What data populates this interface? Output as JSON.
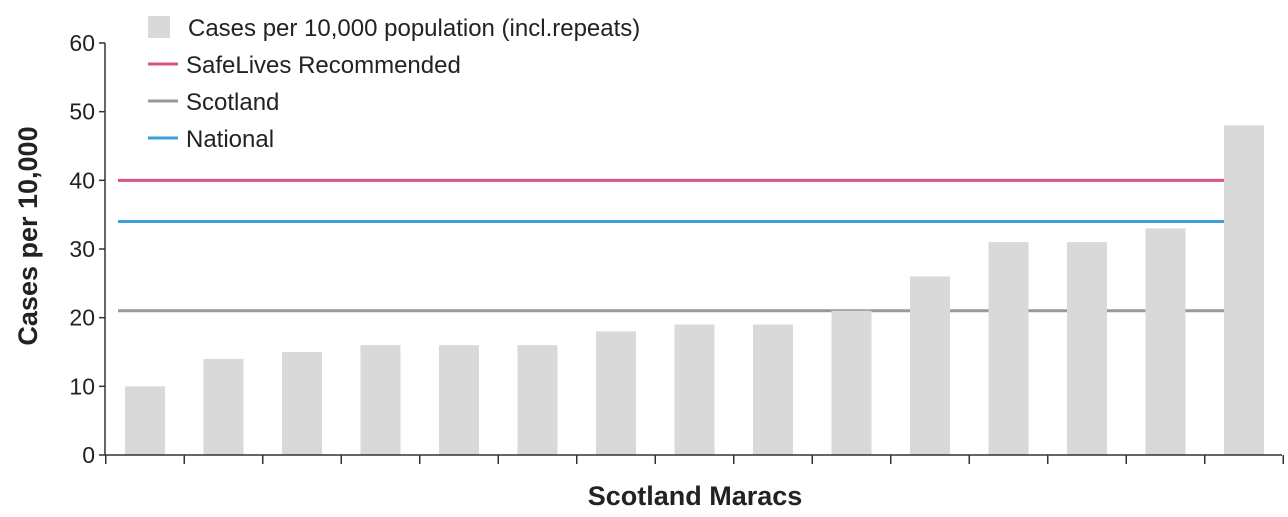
{
  "chart_data": {
    "type": "bar",
    "title": "",
    "xlabel": "Scotland Maracs",
    "ylabel": "Cases per 10,000",
    "ylim": [
      0,
      60
    ],
    "yticks": [
      "0",
      "10",
      "20",
      "30",
      "40",
      "50",
      "60"
    ],
    "categories": [
      "",
      "",
      "",
      "",
      "",
      "",
      "",
      "",
      "",
      "",
      "",
      "",
      "",
      "",
      ""
    ],
    "series": [
      {
        "name": "Cases per 10,000 population (incl.repeats)",
        "type": "bar",
        "color": "#d9d9d9",
        "values": [
          10,
          14,
          15,
          16,
          16,
          16,
          18,
          19,
          19,
          21,
          26,
          31,
          31,
          33,
          48
        ]
      }
    ],
    "reference_lines": [
      {
        "name": "SafeLives Recommended",
        "value": 40,
        "color": "#d9528c"
      },
      {
        "name": "Scotland",
        "value": 21,
        "color": "#999999"
      },
      {
        "name": "National",
        "value": 34,
        "color": "#3fa0d8"
      }
    ],
    "legend": {
      "position": "top-left",
      "items": [
        {
          "label": "Cases per 10,000 population (incl.repeats)",
          "marker": "square",
          "color": "#d9d9d9"
        },
        {
          "label": "SafeLives Recommended",
          "marker": "line",
          "color": "#d9528c"
        },
        {
          "label": "Scotland",
          "marker": "line",
          "color": "#999999"
        },
        {
          "label": "National",
          "marker": "line",
          "color": "#3fa0d8"
        }
      ]
    },
    "grid": false
  }
}
